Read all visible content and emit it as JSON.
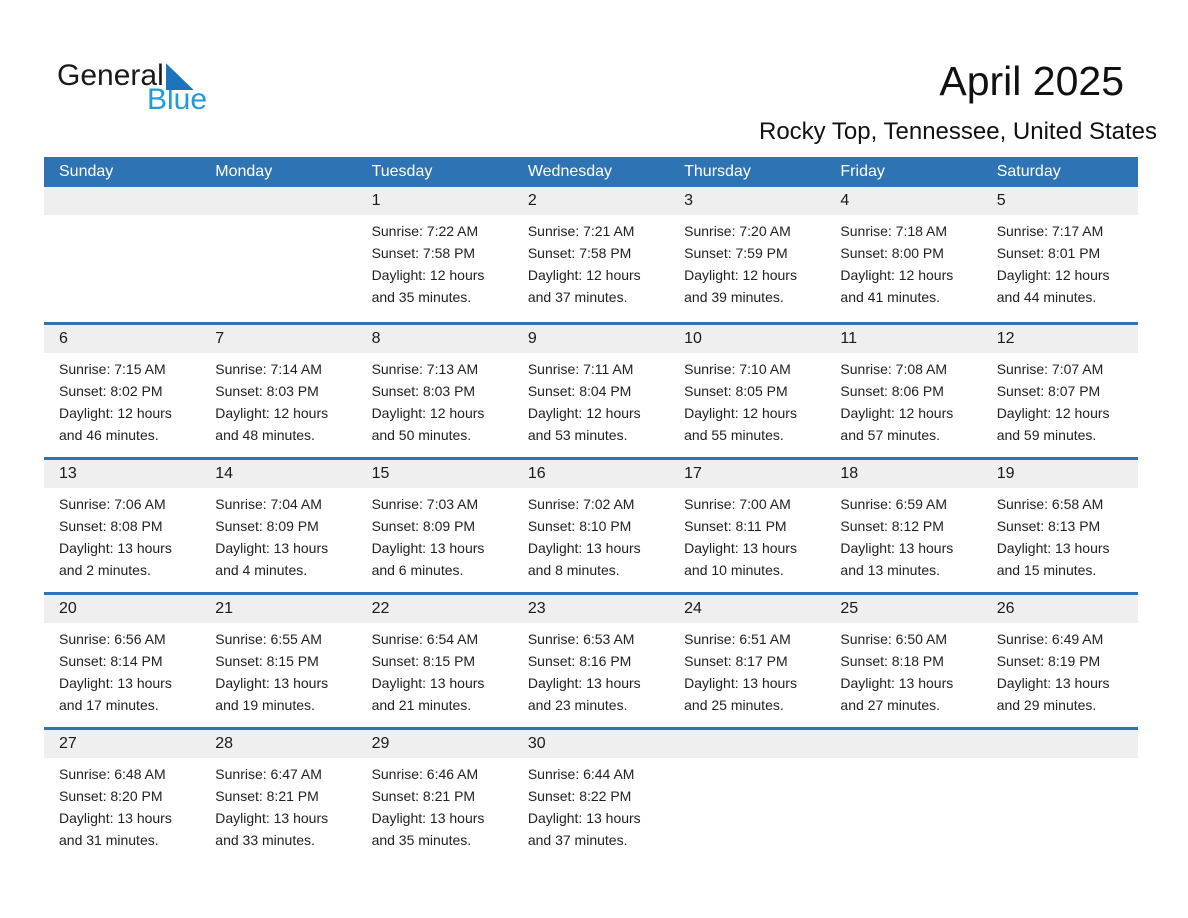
{
  "logo": {
    "part1": "General",
    "part2": "Blue"
  },
  "title": "April 2025",
  "location": "Rocky Top, Tennessee, United States",
  "colors": {
    "header_blue": "#2E74B5",
    "band_gray": "#EFEFEF",
    "logo_blue_dark": "#1C75BC",
    "logo_blue_light": "#1E9CD9"
  },
  "calendar": {
    "day_headers": [
      "Sunday",
      "Monday",
      "Tuesday",
      "Wednesday",
      "Thursday",
      "Friday",
      "Saturday"
    ],
    "weeks": [
      [
        null,
        null,
        {
          "day": "1",
          "lines": [
            "Sunrise: 7:22 AM",
            "Sunset: 7:58 PM",
            "Daylight: 12 hours",
            "and 35 minutes."
          ]
        },
        {
          "day": "2",
          "lines": [
            "Sunrise: 7:21 AM",
            "Sunset: 7:58 PM",
            "Daylight: 12 hours",
            "and 37 minutes."
          ]
        },
        {
          "day": "3",
          "lines": [
            "Sunrise: 7:20 AM",
            "Sunset: 7:59 PM",
            "Daylight: 12 hours",
            "and 39 minutes."
          ]
        },
        {
          "day": "4",
          "lines": [
            "Sunrise: 7:18 AM",
            "Sunset: 8:00 PM",
            "Daylight: 12 hours",
            "and 41 minutes."
          ]
        },
        {
          "day": "5",
          "lines": [
            "Sunrise: 7:17 AM",
            "Sunset: 8:01 PM",
            "Daylight: 12 hours",
            "and 44 minutes."
          ]
        }
      ],
      [
        {
          "day": "6",
          "lines": [
            "Sunrise: 7:15 AM",
            "Sunset: 8:02 PM",
            "Daylight: 12 hours",
            "and 46 minutes."
          ]
        },
        {
          "day": "7",
          "lines": [
            "Sunrise: 7:14 AM",
            "Sunset: 8:03 PM",
            "Daylight: 12 hours",
            "and 48 minutes."
          ]
        },
        {
          "day": "8",
          "lines": [
            "Sunrise: 7:13 AM",
            "Sunset: 8:03 PM",
            "Daylight: 12 hours",
            "and 50 minutes."
          ]
        },
        {
          "day": "9",
          "lines": [
            "Sunrise: 7:11 AM",
            "Sunset: 8:04 PM",
            "Daylight: 12 hours",
            "and 53 minutes."
          ]
        },
        {
          "day": "10",
          "lines": [
            "Sunrise: 7:10 AM",
            "Sunset: 8:05 PM",
            "Daylight: 12 hours",
            "and 55 minutes."
          ]
        },
        {
          "day": "11",
          "lines": [
            "Sunrise: 7:08 AM",
            "Sunset: 8:06 PM",
            "Daylight: 12 hours",
            "and 57 minutes."
          ]
        },
        {
          "day": "12",
          "lines": [
            "Sunrise: 7:07 AM",
            "Sunset: 8:07 PM",
            "Daylight: 12 hours",
            "and 59 minutes."
          ]
        }
      ],
      [
        {
          "day": "13",
          "lines": [
            "Sunrise: 7:06 AM",
            "Sunset: 8:08 PM",
            "Daylight: 13 hours",
            "and 2 minutes."
          ]
        },
        {
          "day": "14",
          "lines": [
            "Sunrise: 7:04 AM",
            "Sunset: 8:09 PM",
            "Daylight: 13 hours",
            "and 4 minutes."
          ]
        },
        {
          "day": "15",
          "lines": [
            "Sunrise: 7:03 AM",
            "Sunset: 8:09 PM",
            "Daylight: 13 hours",
            "and 6 minutes."
          ]
        },
        {
          "day": "16",
          "lines": [
            "Sunrise: 7:02 AM",
            "Sunset: 8:10 PM",
            "Daylight: 13 hours",
            "and 8 minutes."
          ]
        },
        {
          "day": "17",
          "lines": [
            "Sunrise: 7:00 AM",
            "Sunset: 8:11 PM",
            "Daylight: 13 hours",
            "and 10 minutes."
          ]
        },
        {
          "day": "18",
          "lines": [
            "Sunrise: 6:59 AM",
            "Sunset: 8:12 PM",
            "Daylight: 13 hours",
            "and 13 minutes."
          ]
        },
        {
          "day": "19",
          "lines": [
            "Sunrise: 6:58 AM",
            "Sunset: 8:13 PM",
            "Daylight: 13 hours",
            "and 15 minutes."
          ]
        }
      ],
      [
        {
          "day": "20",
          "lines": [
            "Sunrise: 6:56 AM",
            "Sunset: 8:14 PM",
            "Daylight: 13 hours",
            "and 17 minutes."
          ]
        },
        {
          "day": "21",
          "lines": [
            "Sunrise: 6:55 AM",
            "Sunset: 8:15 PM",
            "Daylight: 13 hours",
            "and 19 minutes."
          ]
        },
        {
          "day": "22",
          "lines": [
            "Sunrise: 6:54 AM",
            "Sunset: 8:15 PM",
            "Daylight: 13 hours",
            "and 21 minutes."
          ]
        },
        {
          "day": "23",
          "lines": [
            "Sunrise: 6:53 AM",
            "Sunset: 8:16 PM",
            "Daylight: 13 hours",
            "and 23 minutes."
          ]
        },
        {
          "day": "24",
          "lines": [
            "Sunrise: 6:51 AM",
            "Sunset: 8:17 PM",
            "Daylight: 13 hours",
            "and 25 minutes."
          ]
        },
        {
          "day": "25",
          "lines": [
            "Sunrise: 6:50 AM",
            "Sunset: 8:18 PM",
            "Daylight: 13 hours",
            "and 27 minutes."
          ]
        },
        {
          "day": "26",
          "lines": [
            "Sunrise: 6:49 AM",
            "Sunset: 8:19 PM",
            "Daylight: 13 hours",
            "and 29 minutes."
          ]
        }
      ],
      [
        {
          "day": "27",
          "lines": [
            "Sunrise: 6:48 AM",
            "Sunset: 8:20 PM",
            "Daylight: 13 hours",
            "and 31 minutes."
          ]
        },
        {
          "day": "28",
          "lines": [
            "Sunrise: 6:47 AM",
            "Sunset: 8:21 PM",
            "Daylight: 13 hours",
            "and 33 minutes."
          ]
        },
        {
          "day": "29",
          "lines": [
            "Sunrise: 6:46 AM",
            "Sunset: 8:21 PM",
            "Daylight: 13 hours",
            "and 35 minutes."
          ]
        },
        {
          "day": "30",
          "lines": [
            "Sunrise: 6:44 AM",
            "Sunset: 8:22 PM",
            "Daylight: 13 hours",
            "and 37 minutes."
          ]
        },
        null,
        null,
        null
      ]
    ]
  }
}
